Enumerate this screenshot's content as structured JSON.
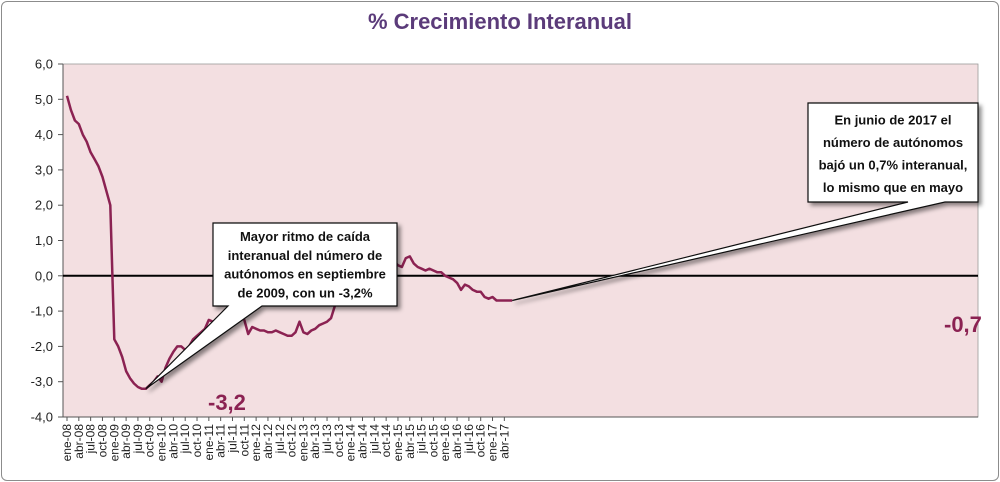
{
  "chart_data": {
    "type": "line",
    "title": "% Crecimiento Interanual",
    "xlabel": "",
    "ylabel": "",
    "ylim": [
      -4.0,
      6.0
    ],
    "yticks": [
      "6,0",
      "5,0",
      "4,0",
      "3,0",
      "2,0",
      "1,0",
      "0,0",
      "-1,0",
      "-2,0",
      "-3,0",
      "-4,0"
    ],
    "ytick_values": [
      6,
      5,
      4,
      3,
      2,
      1,
      0,
      -1,
      -2,
      -3,
      -4
    ],
    "grid": false,
    "plot_background": "#f3dfe1",
    "line_color": "#8b2252",
    "zero_line_color": "#000000",
    "x_labels": [
      "ene-08",
      "abr-08",
      "jul-08",
      "oct-08",
      "ene-09",
      "abr-09",
      "jul-09",
      "oct-09",
      "ene-10",
      "abr-10",
      "jul-10",
      "oct-10",
      "ene-11",
      "abr-11",
      "jul-11",
      "oct-11",
      "ene-12",
      "abr-12",
      "jul-12",
      "oct-12",
      "ene-13",
      "abr-13",
      "jul-13",
      "oct-13",
      "ene-14",
      "abr-14",
      "jul-14",
      "oct-14",
      "ene-15",
      "abr-15",
      "jul-15",
      "oct-15",
      "ene-16",
      "abr-16",
      "jul-16",
      "oct-16",
      "ene-17",
      "abr-17"
    ],
    "series": [
      {
        "values": [
          5.1,
          4.7,
          4.4,
          4.3,
          4.0,
          3.8,
          3.5,
          3.3,
          3.1,
          2.8,
          2.4,
          2.0,
          -1.8,
          -2.0,
          -2.3,
          -2.7,
          -2.9,
          -3.05,
          -3.15,
          -3.2,
          -3.2,
          -3.1,
          -3.0,
          -2.85,
          -3.0,
          -2.6,
          -2.35,
          -2.15,
          -2.0,
          -2.0,
          -2.1,
          -2.0,
          -1.8,
          -1.7,
          -1.6,
          -1.5,
          -1.25,
          -1.3,
          -1.25,
          -1.22,
          -1.2,
          -1.18,
          -1.15,
          -1.2,
          -1.2,
          -1.25,
          -1.65,
          -1.45,
          -1.5,
          -1.55,
          -1.55,
          -1.6,
          -1.6,
          -1.55,
          -1.6,
          -1.65,
          -1.7,
          -1.7,
          -1.6,
          -1.3,
          -1.6,
          -1.65,
          -1.55,
          -1.5,
          -1.4,
          -1.35,
          -1.3,
          -1.2,
          -0.85,
          -0.6,
          -0.4,
          -0.3,
          0.1,
          0.5,
          0.45,
          0.5,
          0.6,
          0.55,
          0.65,
          0.75,
          0.55,
          0.55,
          0.45,
          0.4,
          0.3,
          0.25,
          0.5,
          0.55,
          0.35,
          0.25,
          0.2,
          0.15,
          0.2,
          0.15,
          0.1,
          0.1,
          0.0,
          -0.05,
          -0.1,
          -0.2,
          -0.4,
          -0.25,
          -0.3,
          -0.4,
          -0.45,
          -0.45,
          -0.6,
          -0.65,
          -0.6,
          -0.7,
          -0.7,
          -0.7,
          -0.7,
          -0.7
        ]
      }
    ],
    "annotations": [
      {
        "lines": [
          "Mayor ritmo de caída",
          "interanual del número de",
          "autónomos en septiembre",
          "de 2009, con un -3,2%"
        ],
        "point_index": 20,
        "point_value": -3.2,
        "value_label": "-3,2"
      },
      {
        "lines": [
          "En junio de 2017 el",
          "número de autónomos",
          "bajó un 0,7% interanual,",
          "lo mismo que en mayo"
        ],
        "point_index": 113,
        "point_value": -0.7,
        "value_label": "-0,7"
      }
    ]
  }
}
